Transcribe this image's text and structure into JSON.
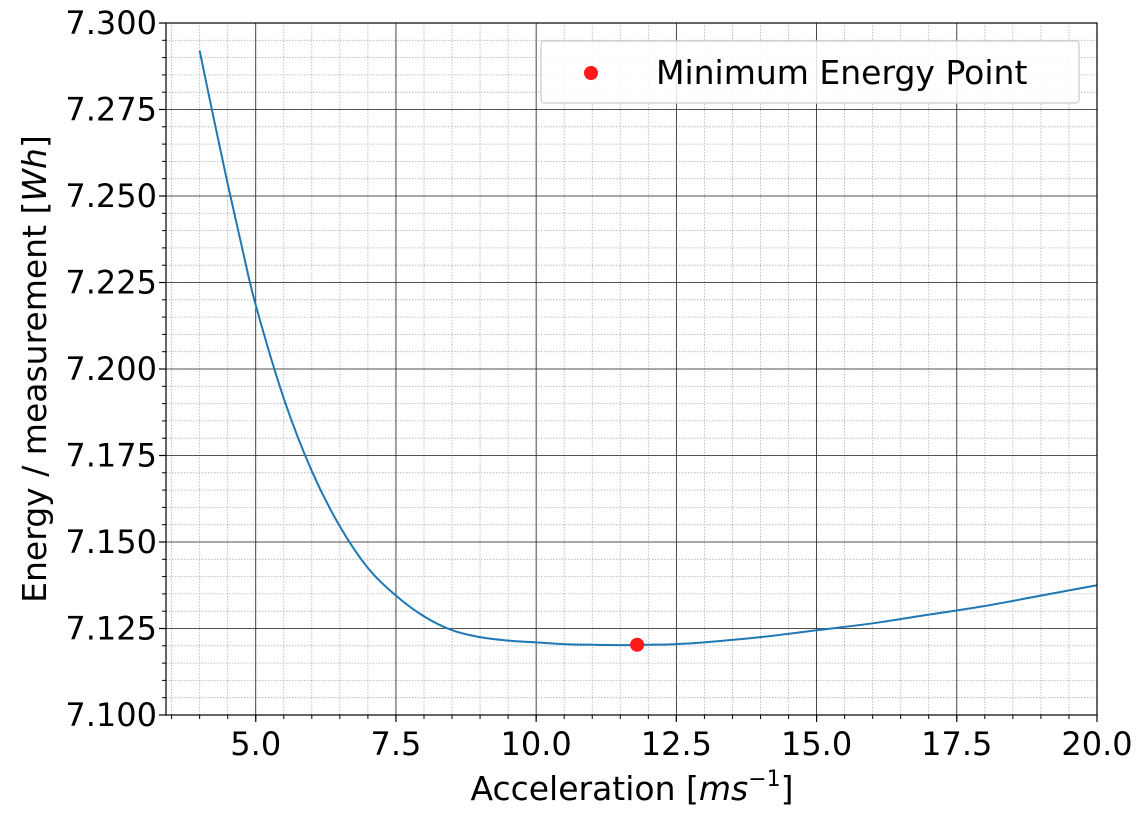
{
  "chart_data": {
    "type": "line",
    "title": "",
    "xlabel": "Acceleration [",
    "xlabel_math": "ms",
    "xlabel_sup": "−1",
    "xlabel_end": "]",
    "ylabel": "Energy / measurement [",
    "ylabel_math": "Wh",
    "ylabel_end": "]",
    "xlim": [
      3.4,
      20.0
    ],
    "ylim": [
      7.1,
      7.3
    ],
    "xticks": [
      5.0,
      7.5,
      10.0,
      12.5,
      15.0,
      17.5,
      20.0
    ],
    "xtick_labels": [
      "5.0",
      "7.5",
      "10.0",
      "12.5",
      "15.0",
      "17.5",
      "20.0"
    ],
    "yticks": [
      7.1,
      7.125,
      7.15,
      7.175,
      7.2,
      7.225,
      7.25,
      7.275,
      7.3
    ],
    "ytick_labels": [
      "7.100",
      "7.125",
      "7.150",
      "7.175",
      "7.200",
      "7.225",
      "7.250",
      "7.275",
      "7.300"
    ],
    "grid": "major and minor",
    "legend_position": "top-right",
    "series": [
      {
        "color": "#1f77b4",
        "x": [
          4.0,
          4.25,
          4.5,
          4.75,
          5.0,
          5.5,
          6.0,
          6.5,
          7.0,
          7.5,
          8.0,
          8.5,
          9.0,
          9.5,
          10.0,
          10.5,
          11.0,
          11.5,
          12.0,
          12.5,
          13.0,
          14.0,
          15.0,
          16.0,
          17.0,
          18.0,
          19.0,
          20.0
        ],
        "y": [
          7.292,
          7.2725,
          7.2535,
          7.2355,
          7.2185,
          7.1915,
          7.1705,
          7.1545,
          7.1425,
          7.1345,
          7.1285,
          7.1245,
          7.1225,
          7.1215,
          7.121,
          7.1205,
          7.1203,
          7.1202,
          7.1203,
          7.1205,
          7.121,
          7.1225,
          7.1245,
          7.1265,
          7.129,
          7.1315,
          7.1345,
          7.1375
        ]
      }
    ],
    "points": [
      {
        "name": "Minimum Energy Point",
        "x": 11.8,
        "y": 7.1203,
        "color": "#ff1a1a"
      }
    ]
  }
}
